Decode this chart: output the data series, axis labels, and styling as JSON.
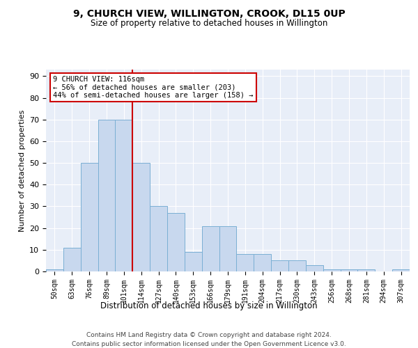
{
  "title": "9, CHURCH VIEW, WILLINGTON, CROOK, DL15 0UP",
  "subtitle": "Size of property relative to detached houses in Willington",
  "xlabel": "Distribution of detached houses by size in Willington",
  "ylabel": "Number of detached properties",
  "bin_labels": [
    "50sqm",
    "63sqm",
    "76sqm",
    "89sqm",
    "101sqm",
    "114sqm",
    "127sqm",
    "140sqm",
    "153sqm",
    "166sqm",
    "179sqm",
    "191sqm",
    "204sqm",
    "217sqm",
    "230sqm",
    "243sqm",
    "256sqm",
    "268sqm",
    "281sqm",
    "294sqm",
    "307sqm"
  ],
  "bar_heights": [
    1,
    11,
    50,
    70,
    70,
    50,
    30,
    27,
    9,
    21,
    21,
    8,
    8,
    5,
    5,
    3,
    1,
    1,
    1,
    0,
    1
  ],
  "bar_color": "#c8d8ee",
  "bar_edge_color": "#7aafd4",
  "vline_color": "#cc0000",
  "annotation_text": "9 CHURCH VIEW: 116sqm\n← 56% of detached houses are smaller (203)\n44% of semi-detached houses are larger (158) →",
  "annotation_box_color": "#ffffff",
  "annotation_box_edge": "#cc0000",
  "ylim": [
    0,
    93
  ],
  "yticks": [
    0,
    10,
    20,
    30,
    40,
    50,
    60,
    70,
    80,
    90
  ],
  "footer_line1": "Contains HM Land Registry data © Crown copyright and database right 2024.",
  "footer_line2": "Contains public sector information licensed under the Open Government Licence v3.0.",
  "plot_bg_color": "#e8eef8"
}
